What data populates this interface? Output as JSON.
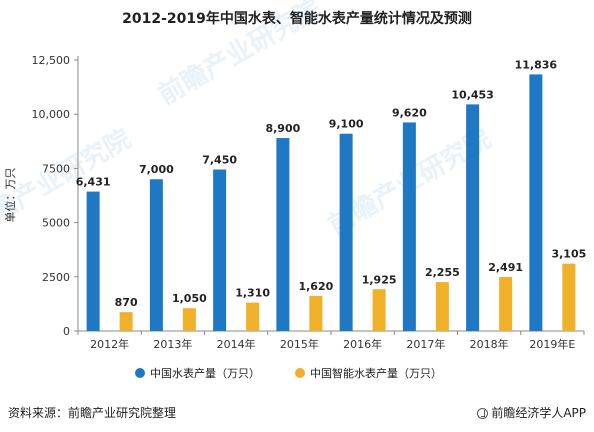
{
  "chart_data": {
    "type": "bar",
    "title": "2012-2019年中国水表、智能水表产量统计情况及预测",
    "ylabel": "单位：万只",
    "xlabel": "",
    "ylim": [
      0,
      12500
    ],
    "yticks": [
      "0",
      "2500",
      "5000",
      "7500",
      "10,000",
      "12,500"
    ],
    "ytick_values": [
      0,
      2500,
      5000,
      7500,
      10000,
      12500
    ],
    "categories": [
      "2012年",
      "2013年",
      "2014年",
      "2015年",
      "2016年",
      "2017年",
      "2018年",
      "2019年E"
    ],
    "series": [
      {
        "name": "中国水表产量（万只）",
        "color": "#1f78c4",
        "values": [
          6431,
          7000,
          7450,
          8900,
          9100,
          9620,
          10453,
          11836
        ],
        "labels": [
          "6,431",
          "7,000",
          "7,450",
          "8,900",
          "9,100",
          "9,620",
          "10,453",
          "11,836"
        ]
      },
      {
        "name": "中国智能水表产量（万只）",
        "color": "#f0b02a",
        "values": [
          870,
          1050,
          1310,
          1620,
          1925,
          2255,
          2491,
          3105
        ],
        "labels": [
          "870",
          "1,050",
          "1,310",
          "1,620",
          "1,925",
          "2,255",
          "2,491",
          "3,105"
        ]
      }
    ],
    "grid": false,
    "legend_position": "bottom"
  },
  "footer": {
    "source": "资料来源：前瞻产业研究院整理",
    "brand": "前瞻经济学人APP",
    "brand_icon": "qianzhan-logo-icon"
  },
  "watermark": {
    "text_cn": "前瞻产业研究院",
    "text_en": "FORWARD THE ECONOMIST"
  }
}
